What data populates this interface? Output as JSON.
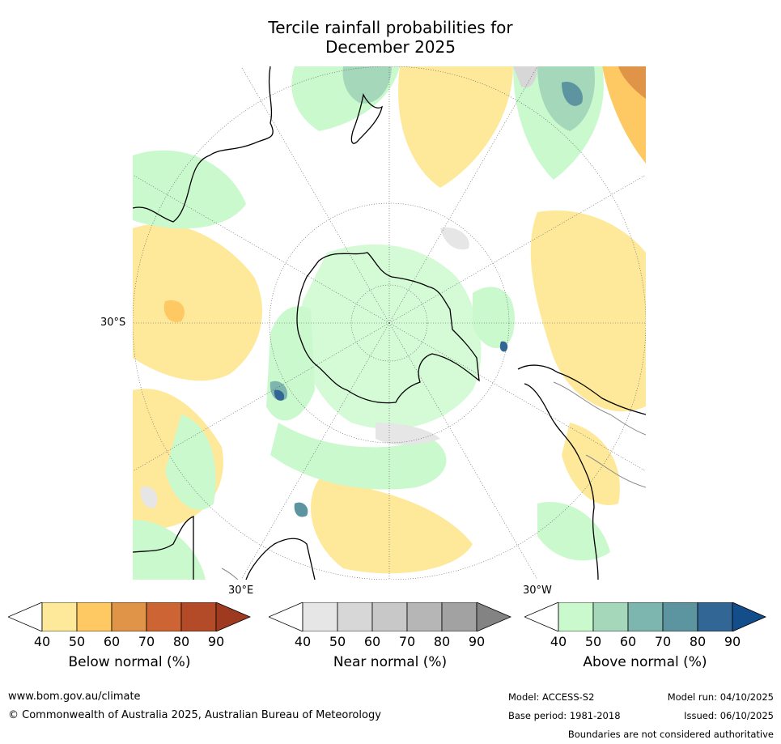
{
  "title": {
    "line1": "Tercile rainfall probabilities for",
    "line2": "December 2025"
  },
  "map": {
    "lat_label": "30°S",
    "lon_label_left": "30°E",
    "lon_label_right": "30°W"
  },
  "colorbars": [
    {
      "label": "Below normal (%)",
      "ticks": [
        "40",
        "50",
        "60",
        "70",
        "80",
        "90"
      ],
      "colors": [
        "#ffffff",
        "#fee99b",
        "#fec962",
        "#e09447",
        "#cc6433",
        "#b34a28",
        "#9e3a20"
      ]
    },
    {
      "label": "Near normal (%)",
      "ticks": [
        "40",
        "50",
        "60",
        "70",
        "80",
        "90"
      ],
      "colors": [
        "#ffffff",
        "#e6e6e6",
        "#d7d7d7",
        "#c8c8c8",
        "#b6b6b6",
        "#a2a2a2",
        "#838383"
      ]
    },
    {
      "label": "Above normal (%)",
      "ticks": [
        "40",
        "50",
        "60",
        "70",
        "80",
        "90"
      ],
      "colors": [
        "#ffffff",
        "#c9f9cc",
        "#a5d8bb",
        "#7db6ae",
        "#5c94a0",
        "#326694",
        "#134d8a"
      ]
    }
  ],
  "footer": {
    "website": "www.bom.gov.au/climate",
    "copyright": "© Commonwealth of Australia 2025, Australian Bureau of Meteorology",
    "model": "Model: ACCESS-S2",
    "base_period": "Base period: 1981-2018",
    "model_run": "Model run: 04/10/2025",
    "issued": "Issued: 06/10/2025",
    "disclaimer": "Boundaries are not considered authoritative"
  }
}
